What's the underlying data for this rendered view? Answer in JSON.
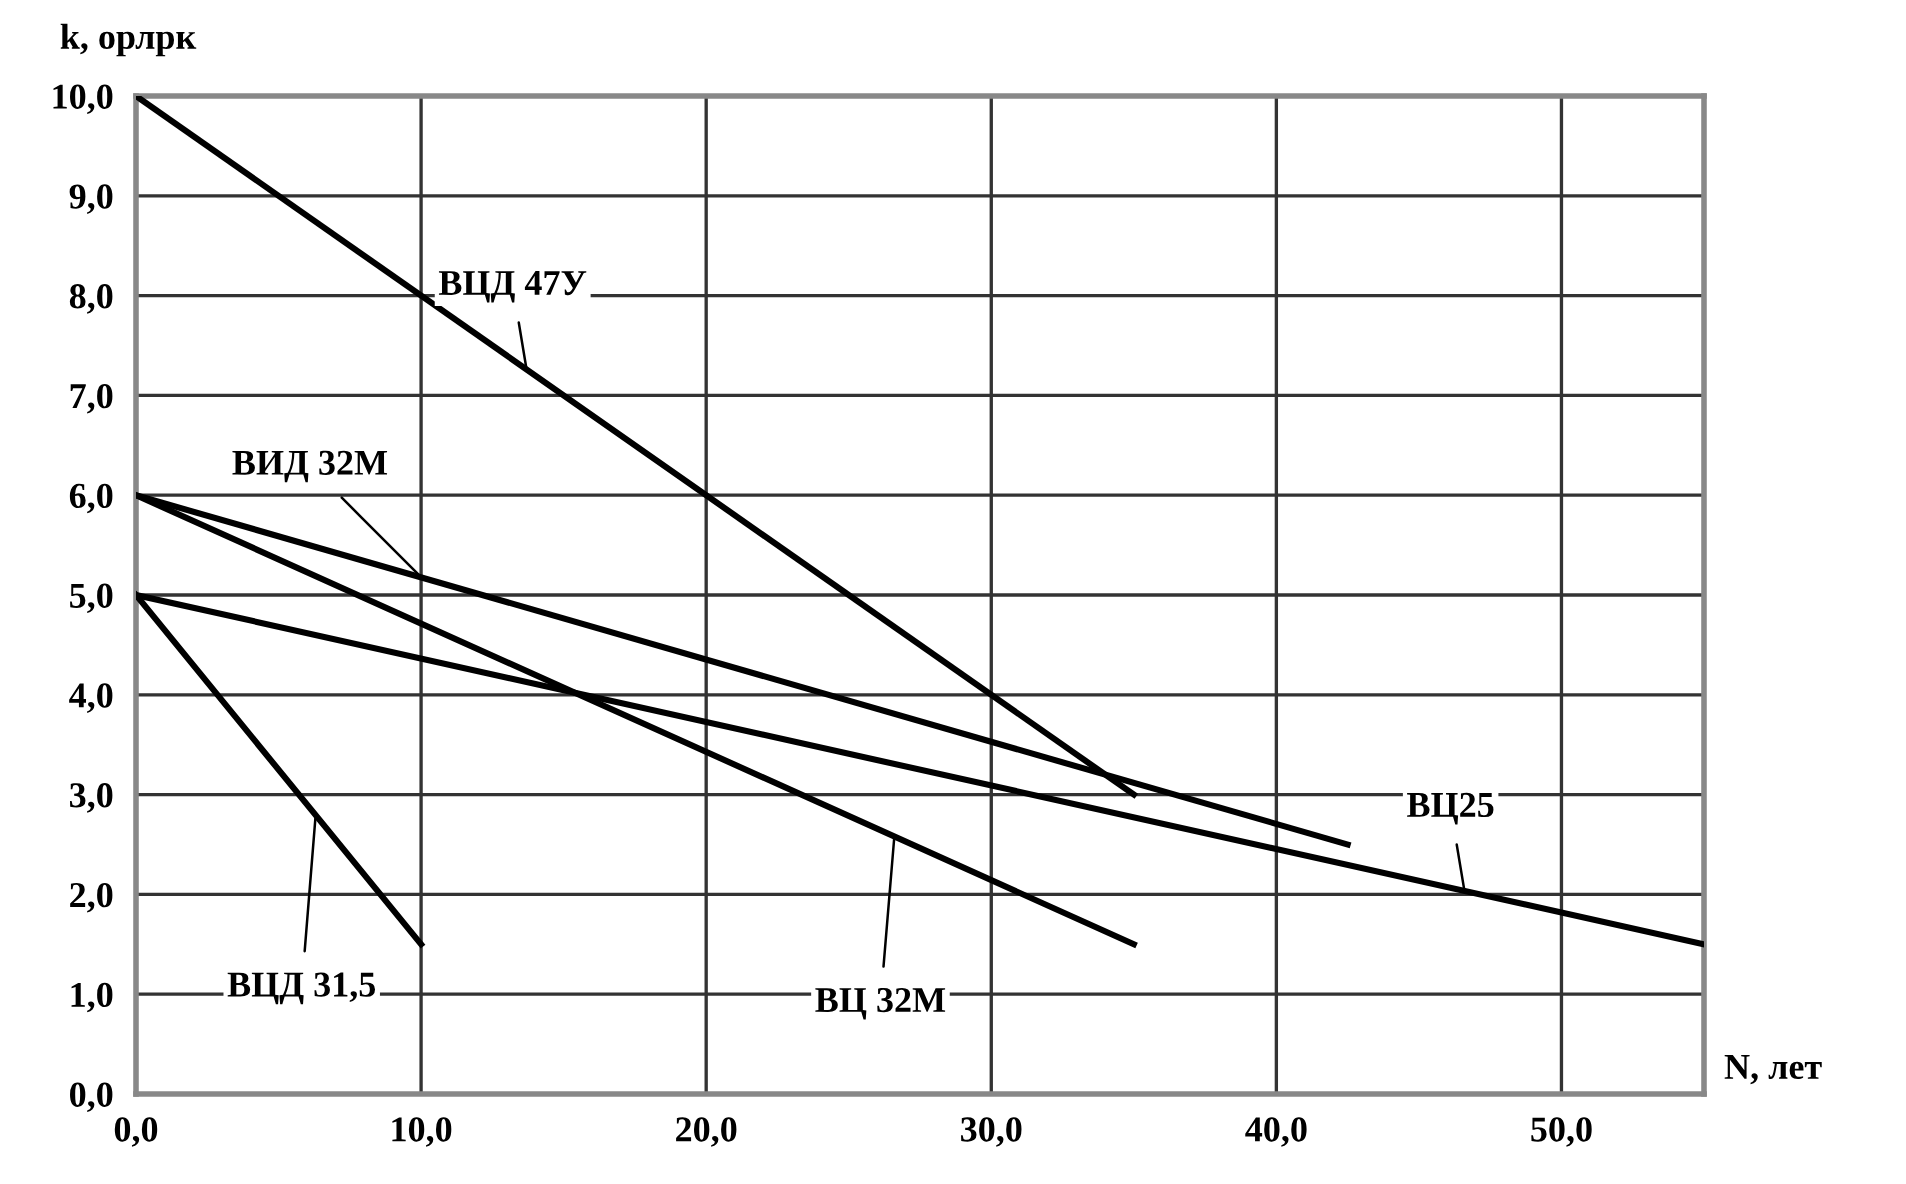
{
  "chart_data": {
    "type": "line",
    "xlabel": "N, лет",
    "ylabel": "k, орлрк",
    "series": [
      {
        "color": "#000000",
        "x": [
          0,
          35
        ],
        "values": [
          10,
          3
        ]
      },
      {
        "color": "#000000",
        "x": [
          0,
          42.5
        ],
        "values": [
          6,
          2.5
        ]
      },
      {
        "color": "#000000",
        "x": [
          0,
          35
        ],
        "values": [
          6,
          1.5
        ]
      },
      {
        "color": "#000000",
        "x": [
          0,
          55
        ],
        "values": [
          5,
          1.5
        ]
      },
      {
        "color": "#000000",
        "x": [
          0,
          10
        ],
        "values": [
          5,
          1.5
        ]
      }
    ],
    "annotations": [
      {
        "text": "ВЦД 47У",
        "x": 13.7,
        "y": 7.26
      },
      {
        "text": "ВИД 32М",
        "x": 10,
        "y": 5.18
      },
      {
        "text": "ВЦ25",
        "x": 46.6,
        "y": 2.03
      },
      {
        "text": "ВЦ 32М",
        "x": 26.6,
        "y": 2.58
      },
      {
        "text": "ВЦД 31,5",
        "x": 6.3,
        "y": 2.79
      }
    ],
    "xlim": [
      0,
      55
    ],
    "ylim": [
      0,
      10
    ],
    "xticks": [
      {
        "value": 0,
        "label": "0,0"
      },
      {
        "value": 10,
        "label": "10,0"
      },
      {
        "value": 20,
        "label": "20,0"
      },
      {
        "value": 30,
        "label": "30,0"
      },
      {
        "value": 40,
        "label": "40,0"
      },
      {
        "value": 50,
        "label": "50,0"
      }
    ],
    "yticks": [
      {
        "value": 0,
        "label": "0,0"
      },
      {
        "value": 1,
        "label": "1,0"
      },
      {
        "value": 2,
        "label": "2,0"
      },
      {
        "value": 3,
        "label": "3,0"
      },
      {
        "value": 4,
        "label": "4,0"
      },
      {
        "value": 5,
        "label": "5,0"
      },
      {
        "value": 6,
        "label": "6,0"
      },
      {
        "value": 7,
        "label": "7,0"
      },
      {
        "value": 8,
        "label": "8,0"
      },
      {
        "value": 9,
        "label": "9,0"
      },
      {
        "value": 10,
        "label": "10,0"
      }
    ],
    "grid": true,
    "legend": false,
    "marker": "none",
    "line_style": "solid"
  }
}
